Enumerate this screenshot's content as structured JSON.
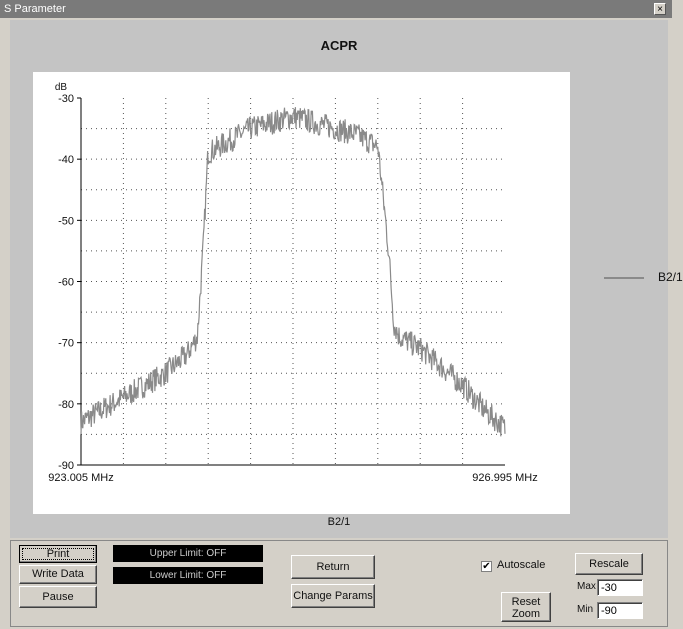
{
  "window": {
    "title": "S Parameter",
    "close_glyph": "×"
  },
  "legend": {
    "label": "B2/1",
    "color": "#8a8a8a"
  },
  "footer_label": "B2/1",
  "chart_data": {
    "type": "line",
    "title": "ACPR",
    "ylabel": "dB",
    "xlabel": "",
    "x_start_label": "923.005 MHz",
    "x_end_label": "926.995 MHz",
    "xlim": [
      923.005,
      926.995
    ],
    "ylim": [
      -90,
      -30
    ],
    "yticks": [
      -30,
      -40,
      -50,
      -60,
      -70,
      -80,
      -90
    ],
    "grid": true,
    "legend_position": "right",
    "series": [
      {
        "name": "B2/1",
        "color": "#8a8a8a",
        "x": [
          923.005,
          923.2,
          923.4,
          923.6,
          923.8,
          924.0,
          924.1,
          924.15,
          924.2,
          924.4,
          924.6,
          924.8,
          925.0,
          925.2,
          925.4,
          925.6,
          925.8,
          925.9,
          925.95,
          926.0,
          926.2,
          926.4,
          926.6,
          926.8,
          926.995
        ],
        "values": [
          -83,
          -81,
          -79,
          -77,
          -75,
          -72,
          -69,
          -56,
          -39,
          -37,
          -35,
          -34,
          -33,
          -34,
          -35,
          -36,
          -38,
          -55,
          -67,
          -69,
          -71,
          -74,
          -77,
          -81,
          -84
        ]
      }
    ]
  },
  "controls": {
    "print": "Print",
    "write_data": "Write Data",
    "pause": "Pause",
    "upper_limit": "Upper Limit: OFF",
    "lower_limit": "Lower Limit: OFF",
    "return": "Return",
    "change_params": "Change Params",
    "autoscale_label": "Autoscale",
    "autoscale_checked": true,
    "reset_zoom": "Reset Zoom",
    "rescale": "Rescale",
    "max_label": "Max",
    "max_value": "-30",
    "min_label": "Min",
    "min_value": "-90"
  }
}
